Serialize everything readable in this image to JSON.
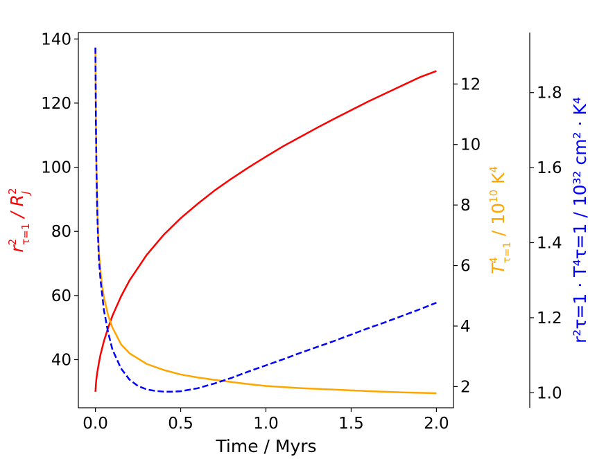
{
  "chart_data": {
    "type": "line",
    "xlabel": "Time / Myrs",
    "x_ticks": [
      "0.0",
      "0.5",
      "1.0",
      "1.5",
      "2.0"
    ],
    "xlim": [
      -0.1,
      2.1
    ],
    "axes": [
      {
        "id": "left",
        "color": "#ff0000",
        "ylabel": {
          "base": "r",
          "sup": "2",
          "sub": "τ=1",
          "rest": " / R",
          "rest_sup": "2",
          "rest_sub": "J"
        },
        "ylim": [
          25,
          142
        ],
        "ticks": [
          "40",
          "60",
          "80",
          "100",
          "120",
          "140"
        ]
      },
      {
        "id": "right1",
        "color": "#ffa500",
        "ylabel": {
          "base": "T",
          "sup": "4",
          "sub": "τ=1",
          "rest": " / 10",
          "rest_sup": "10",
          "unit": " K",
          "unit_sup": "4"
        },
        "ylim": [
          1.3,
          13.7
        ],
        "ticks": [
          "2",
          "4",
          "6",
          "8",
          "10",
          "12"
        ]
      },
      {
        "id": "right2",
        "color": "#0000ff",
        "ylabel": {
          "text": "r²τ=1 · T⁴τ=1 / 10³² cm² · K⁴"
        },
        "ylim": [
          0.96,
          1.96
        ],
        "ticks": [
          "1.0",
          "1.2",
          "1.4",
          "1.6",
          "1.8"
        ]
      }
    ],
    "series": [
      {
        "axis": "left",
        "color": "#ff0000",
        "style": "solid",
        "x": [
          0.0,
          0.005,
          0.01,
          0.02,
          0.03,
          0.05,
          0.075,
          0.1,
          0.15,
          0.2,
          0.3,
          0.4,
          0.5,
          0.6,
          0.7,
          0.8,
          0.9,
          1.0,
          1.1,
          1.2,
          1.3,
          1.4,
          1.5,
          1.6,
          1.7,
          1.8,
          1.9,
          2.0
        ],
        "y": [
          30.0,
          33.6,
          35.7,
          38.9,
          41.6,
          45.8,
          50.0,
          53.7,
          59.7,
          64.7,
          72.6,
          78.9,
          84.1,
          88.6,
          92.8,
          96.5,
          100.0,
          103.3,
          106.5,
          109.4,
          112.3,
          115.1,
          117.8,
          120.5,
          123.0,
          125.5,
          128.0,
          130.0
        ]
      },
      {
        "axis": "right1",
        "color": "#ffa500",
        "style": "solid",
        "x": [
          0.0,
          0.003,
          0.006,
          0.01,
          0.015,
          0.02,
          0.03,
          0.04,
          0.05,
          0.075,
          0.1,
          0.15,
          0.2,
          0.3,
          0.4,
          0.5,
          0.6,
          0.7,
          0.8,
          0.9,
          1.0,
          1.2,
          1.4,
          1.6,
          1.8,
          2.0
        ],
        "y": [
          13.2,
          10.8,
          9.3,
          8.2,
          7.2,
          6.5,
          5.8,
          5.3,
          4.95,
          4.35,
          3.95,
          3.4,
          3.1,
          2.75,
          2.55,
          2.4,
          2.3,
          2.22,
          2.15,
          2.08,
          2.02,
          1.95,
          1.9,
          1.85,
          1.81,
          1.78
        ]
      },
      {
        "axis": "right2",
        "color": "#0000ff",
        "style": "dashed",
        "x": [
          0.0,
          0.003,
          0.006,
          0.01,
          0.015,
          0.02,
          0.03,
          0.04,
          0.05,
          0.075,
          0.1,
          0.15,
          0.2,
          0.25,
          0.3,
          0.35,
          0.4,
          0.45,
          0.5,
          0.6,
          0.7,
          0.8,
          0.9,
          1.0,
          1.1,
          1.2,
          1.3,
          1.4,
          1.5,
          1.6,
          1.7,
          1.8,
          1.9,
          2.0
        ],
        "y": [
          1.92,
          1.72,
          1.6,
          1.5,
          1.42,
          1.36,
          1.3,
          1.26,
          1.22,
          1.16,
          1.115,
          1.065,
          1.035,
          1.018,
          1.009,
          1.005,
          1.003,
          1.003,
          1.004,
          1.012,
          1.025,
          1.04,
          1.057,
          1.073,
          1.089,
          1.106,
          1.122,
          1.138,
          1.155,
          1.172,
          1.188,
          1.205,
          1.222,
          1.24
        ]
      }
    ]
  }
}
